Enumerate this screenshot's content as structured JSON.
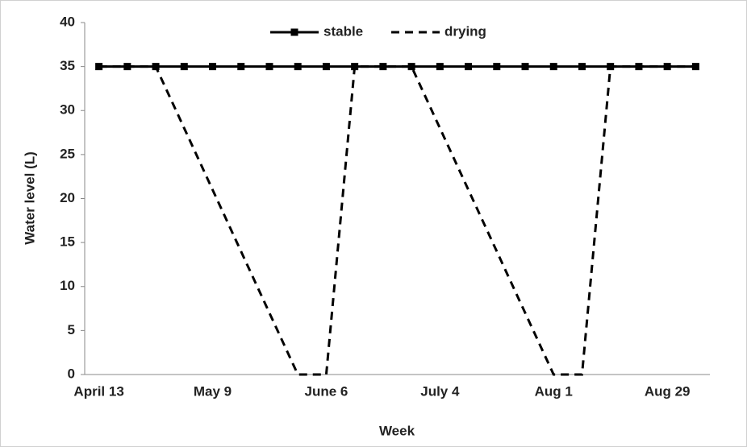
{
  "chart_data": {
    "type": "line",
    "x_label": "Week",
    "y_label": "Water level (L)",
    "categories": [
      "April 13",
      null,
      null,
      null,
      "May 9",
      null,
      null,
      null,
      "June 6",
      null,
      null,
      null,
      "July 4",
      null,
      null,
      null,
      "Aug 1",
      null,
      null,
      null,
      "Aug 29",
      null
    ],
    "series": [
      {
        "name": "stable",
        "color": "#000000",
        "style": "solid",
        "marker": "square",
        "values": [
          35,
          35,
          35,
          35,
          35,
          35,
          35,
          35,
          35,
          35,
          35,
          35,
          35,
          35,
          35,
          35,
          35,
          35,
          35,
          35,
          35,
          35
        ]
      },
      {
        "name": "drying",
        "color": "#000000",
        "style": "dashed",
        "marker": "none",
        "values": [
          35,
          35,
          35,
          28,
          21,
          14,
          7,
          0,
          0,
          35,
          35,
          35,
          28,
          21,
          14,
          7,
          0,
          0,
          35,
          35,
          35,
          35
        ]
      }
    ],
    "ylim": [
      0,
      40
    ],
    "yticks": [
      0,
      5,
      10,
      15,
      20,
      25,
      30,
      35,
      40
    ],
    "grid": false,
    "legend": "top"
  }
}
